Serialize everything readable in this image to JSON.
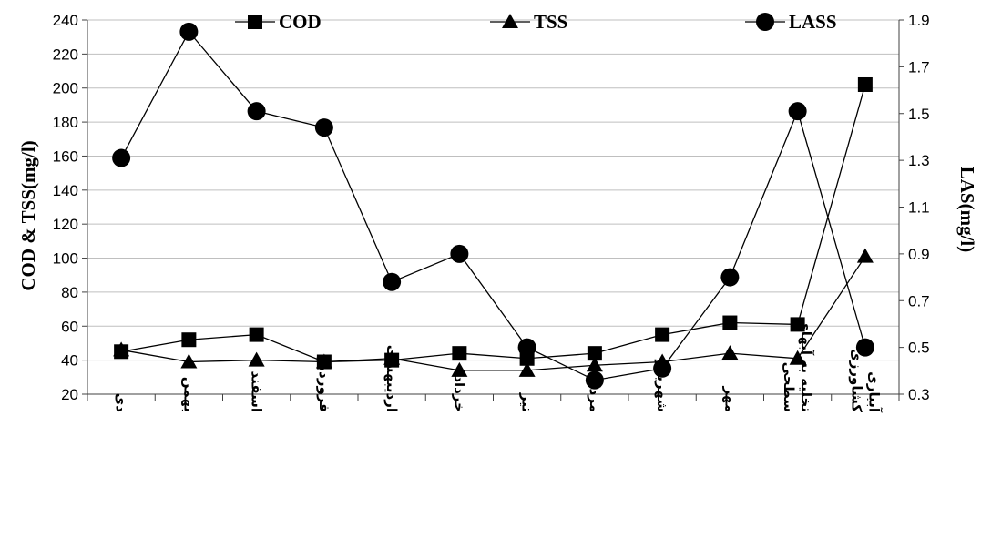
{
  "chart_data": {
    "type": "line",
    "categories": [
      "دی",
      "بهمن",
      "اسفند",
      "فروردین",
      "اردیبهشت",
      "خرداد",
      "تیر",
      "مرداد",
      "شهریور",
      "مهر",
      "تخلیه به آبهای سطحی",
      "آبیاری کشاورزی"
    ],
    "series": [
      {
        "name": "COD",
        "axis": "left",
        "marker": "square",
        "values": [
          45,
          52,
          55,
          39,
          40,
          44,
          41,
          44,
          55,
          62,
          61,
          202
        ]
      },
      {
        "name": "TSS",
        "axis": "left",
        "marker": "triangle",
        "values": [
          46,
          39,
          40,
          39,
          41,
          34,
          34,
          37,
          39,
          44,
          41,
          101
        ]
      },
      {
        "name": "LASS",
        "axis": "right",
        "marker": "circle",
        "values": [
          1.31,
          1.85,
          1.51,
          1.44,
          0.78,
          0.9,
          0.5,
          0.36,
          0.41,
          0.8,
          1.51,
          0.5
        ]
      }
    ],
    "ylabel": "COD & TSS(mg/l)",
    "y2label": "LAS(mg/l)",
    "ylim": [
      20,
      240
    ],
    "y_ticks": [
      20,
      40,
      60,
      80,
      100,
      120,
      140,
      160,
      180,
      200,
      220,
      240
    ],
    "y2lim": [
      0.3,
      1.9
    ],
    "y2_ticks": [
      "0.3",
      "0.5",
      "0.7",
      "0.9",
      "1.1",
      "1.3",
      "1.5",
      "1.7",
      "1.9"
    ],
    "grid": "horizontal",
    "legend_position": "top"
  }
}
